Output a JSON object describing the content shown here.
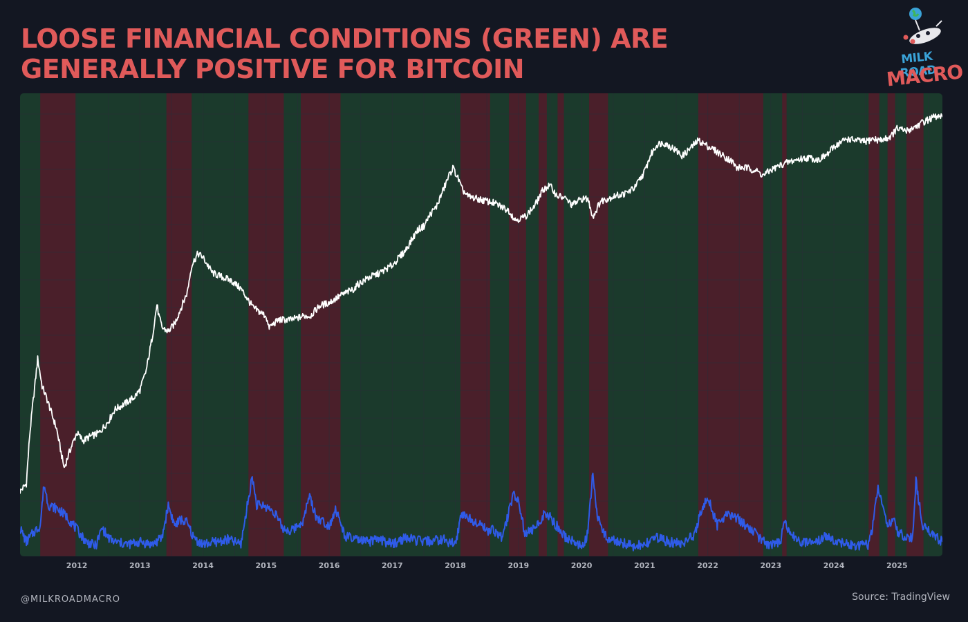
{
  "header": {
    "title": "LOOSE FINANCIAL CONDITIONS (GREEN) ARE GENERALLY POSITIVE FOR BITCOIN"
  },
  "logo": {
    "line1": "MILK ROAD",
    "line2": "MACRO",
    "icons": [
      "globe-icon",
      "cow-icon"
    ]
  },
  "footer": {
    "handle": "@MILKROADMACRO",
    "source": "Source: TradingView"
  },
  "colors": {
    "background": "#131722",
    "title": "#e05a5a",
    "loose_region": "#1b3a2c",
    "tight_region": "#4a1f2a",
    "bitcoin_line": "#ffffff",
    "conditions_line": "#2f5be8",
    "grid": "#2a2e39",
    "tick_text": "#b2b5be"
  },
  "chart_data": {
    "type": "line",
    "title": "LOOSE FINANCIAL CONDITIONS (GREEN) ARE GENERALLY POSITIVE FOR BITCOIN",
    "xlabel": "",
    "ylabel": "",
    "x_range": [
      2011.1,
      2025.72
    ],
    "x_ticks": [
      "2012",
      "2013",
      "2014",
      "2015",
      "2016",
      "2017",
      "2018",
      "2019",
      "2020",
      "2021",
      "2022",
      "2023",
      "2024",
      "2025"
    ],
    "x_tick_values": [
      2012,
      2013,
      2014,
      2015,
      2016,
      2017,
      2018,
      2019,
      2020,
      2021,
      2022,
      2023,
      2024,
      2025
    ],
    "y_log_range": [
      0,
      5.2
    ],
    "conditions_range": [
      0,
      1
    ],
    "grid": true,
    "legend": "none",
    "tight_periods": [
      [
        2011.42,
        2011.98
      ],
      [
        2013.42,
        2013.82
      ],
      [
        2014.72,
        2015.28
      ],
      [
        2015.55,
        2016.18
      ],
      [
        2018.08,
        2018.55
      ],
      [
        2018.85,
        2019.12
      ],
      [
        2019.32,
        2019.45
      ],
      [
        2019.62,
        2019.72
      ],
      [
        2020.12,
        2020.42
      ],
      [
        2021.85,
        2022.88
      ],
      [
        2023.18,
        2023.25
      ],
      [
        2024.55,
        2024.72
      ],
      [
        2024.85,
        2024.97
      ],
      [
        2025.15,
        2025.42
      ]
    ],
    "series": [
      {
        "key": "bitcoin",
        "x": [
          2011.1,
          2011.2,
          2011.25,
          2011.3,
          2011.38,
          2011.45,
          2011.52,
          2011.6,
          2011.68,
          2011.75,
          2011.8,
          2011.88,
          2011.95,
          2012.0,
          2012.1,
          2012.2,
          2012.35,
          2012.5,
          2012.6,
          2012.75,
          2012.9,
          2013.0,
          2013.1,
          2013.2,
          2013.27,
          2013.3,
          2013.35,
          2013.45,
          2013.55,
          2013.65,
          2013.75,
          2013.82,
          2013.92,
          2014.0,
          2014.15,
          2014.3,
          2014.45,
          2014.6,
          2014.8,
          2015.0,
          2015.04,
          2015.2,
          2015.4,
          2015.6,
          2015.7,
          2015.85,
          2016.0,
          2016.2,
          2016.4,
          2016.45,
          2016.6,
          2016.8,
          2017.0,
          2017.2,
          2017.4,
          2017.5,
          2017.6,
          2017.7,
          2017.8,
          2017.9,
          2017.96,
          2018.05,
          2018.1,
          2018.2,
          2018.35,
          2018.5,
          2018.6,
          2018.85,
          2018.95,
          2019.1,
          2019.25,
          2019.4,
          2019.5,
          2019.6,
          2019.75,
          2019.85,
          2020.0,
          2020.1,
          2020.18,
          2020.3,
          2020.5,
          2020.7,
          2020.85,
          2021.0,
          2021.1,
          2021.2,
          2021.3,
          2021.45,
          2021.6,
          2021.75,
          2021.85,
          2021.95,
          2022.1,
          2022.25,
          2022.4,
          2022.45,
          2022.6,
          2022.75,
          2022.88,
          2023.0,
          2023.2,
          2023.4,
          2023.6,
          2023.75,
          2023.9,
          2024.0,
          2024.2,
          2024.5,
          2024.6,
          2024.75,
          2024.9,
          2025.0,
          2025.15,
          2025.3,
          2025.45,
          2025.6,
          2025.72
        ],
        "y": [
          0.3,
          0.4,
          1.0,
          1.4,
          2.0,
          1.65,
          1.5,
          1.3,
          1.1,
          0.8,
          0.6,
          0.8,
          0.95,
          1.05,
          0.95,
          1.0,
          1.05,
          1.2,
          1.35,
          1.42,
          1.5,
          1.6,
          1.85,
          2.3,
          2.7,
          2.55,
          2.4,
          2.35,
          2.45,
          2.65,
          2.85,
          3.2,
          3.35,
          3.3,
          3.1,
          3.05,
          3.0,
          2.9,
          2.65,
          2.55,
          2.4,
          2.5,
          2.5,
          2.55,
          2.55,
          2.68,
          2.72,
          2.82,
          2.9,
          2.95,
          3.03,
          3.1,
          3.2,
          3.38,
          3.65,
          3.7,
          3.85,
          3.95,
          4.15,
          4.35,
          4.45,
          4.3,
          4.18,
          4.08,
          4.05,
          4.02,
          4.0,
          3.9,
          3.78,
          3.82,
          3.95,
          4.18,
          4.22,
          4.1,
          4.05,
          3.97,
          4.05,
          4.05,
          3.82,
          4.02,
          4.08,
          4.12,
          4.2,
          4.4,
          4.62,
          4.75,
          4.77,
          4.7,
          4.6,
          4.72,
          4.8,
          4.75,
          4.68,
          4.6,
          4.52,
          4.45,
          4.45,
          4.42,
          4.35,
          4.42,
          4.5,
          4.55,
          4.58,
          4.55,
          4.62,
          4.72,
          4.82,
          4.78,
          4.82,
          4.8,
          4.85,
          4.95,
          4.92,
          4.98,
          5.05,
          5.1,
          5.1
        ]
      },
      {
        "key": "financial-conditions",
        "x": [
          2011.1,
          2011.2,
          2011.3,
          2011.42,
          2011.48,
          2011.55,
          2011.7,
          2011.85,
          2012.0,
          2012.15,
          2012.3,
          2012.4,
          2012.5,
          2012.6,
          2012.8,
          2013.0,
          2013.2,
          2013.35,
          2013.45,
          2013.55,
          2013.65,
          2013.75,
          2013.85,
          2014.0,
          2014.2,
          2014.4,
          2014.6,
          2014.78,
          2014.85,
          2015.0,
          2015.15,
          2015.25,
          2015.4,
          2015.6,
          2015.68,
          2015.8,
          2016.0,
          2016.1,
          2016.25,
          2016.4,
          2016.6,
          2016.8,
          2017.0,
          2017.2,
          2017.5,
          2017.8,
          2018.0,
          2018.1,
          2018.25,
          2018.4,
          2018.5,
          2018.6,
          2018.75,
          2018.92,
          2019.0,
          2019.1,
          2019.25,
          2019.4,
          2019.5,
          2019.6,
          2019.75,
          2019.9,
          2020.0,
          2020.1,
          2020.18,
          2020.25,
          2020.4,
          2020.6,
          2020.8,
          2021.0,
          2021.2,
          2021.4,
          2021.6,
          2021.8,
          2021.9,
          2022.0,
          2022.15,
          2022.3,
          2022.45,
          2022.6,
          2022.75,
          2022.9,
          2023.0,
          2023.15,
          2023.22,
          2023.3,
          2023.5,
          2023.7,
          2023.85,
          2024.0,
          2024.2,
          2024.4,
          2024.55,
          2024.6,
          2024.7,
          2024.85,
          2024.95,
          2025.0,
          2025.1,
          2025.25,
          2025.3,
          2025.4,
          2025.55,
          2025.72
        ],
        "y": [
          0.32,
          0.15,
          0.25,
          0.35,
          0.85,
          0.6,
          0.55,
          0.45,
          0.3,
          0.15,
          0.1,
          0.32,
          0.2,
          0.15,
          0.12,
          0.15,
          0.12,
          0.2,
          0.6,
          0.35,
          0.42,
          0.38,
          0.2,
          0.12,
          0.15,
          0.18,
          0.12,
          0.95,
          0.6,
          0.58,
          0.5,
          0.32,
          0.28,
          0.42,
          0.72,
          0.45,
          0.35,
          0.55,
          0.22,
          0.18,
          0.15,
          0.18,
          0.12,
          0.2,
          0.15,
          0.18,
          0.12,
          0.5,
          0.42,
          0.38,
          0.28,
          0.3,
          0.2,
          0.75,
          0.65,
          0.25,
          0.3,
          0.48,
          0.45,
          0.35,
          0.2,
          0.15,
          0.08,
          0.25,
          1.0,
          0.45,
          0.2,
          0.15,
          0.1,
          0.12,
          0.2,
          0.15,
          0.12,
          0.25,
          0.55,
          0.7,
          0.35,
          0.5,
          0.45,
          0.35,
          0.25,
          0.15,
          0.1,
          0.15,
          0.38,
          0.25,
          0.15,
          0.12,
          0.22,
          0.18,
          0.12,
          0.1,
          0.12,
          0.28,
          0.8,
          0.35,
          0.45,
          0.28,
          0.22,
          0.2,
          0.9,
          0.35,
          0.25,
          0.15
        ]
      }
    ]
  }
}
